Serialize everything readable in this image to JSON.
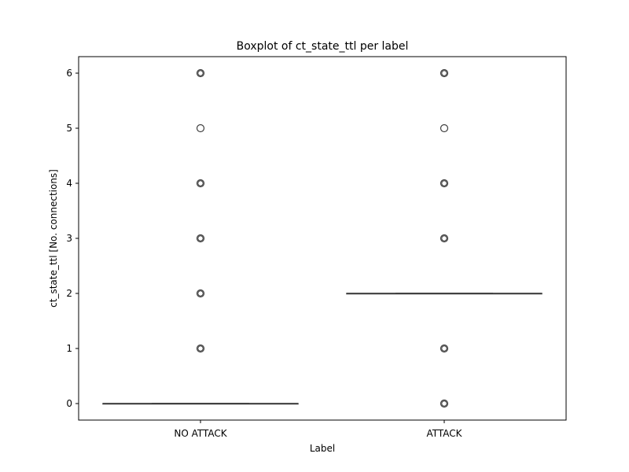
{
  "chart_data": {
    "type": "box",
    "title": "Boxplot of ct_state_ttl per label",
    "xlabel": "Label",
    "ylabel": "ct_state_ttl [No. connections]",
    "categories": [
      "NO ATTACK",
      "ATTACK"
    ],
    "ylim": [
      -0.3,
      6.3
    ],
    "yticks": [
      0,
      1,
      2,
      3,
      4,
      5,
      6
    ],
    "grid": false,
    "boxes": [
      {
        "category": "NO ATTACK",
        "q1": 0,
        "median": 0,
        "q3": 0,
        "whisker_low": 0,
        "whisker_high": 0,
        "outliers": [
          1,
          2,
          3,
          4,
          5,
          6
        ]
      },
      {
        "category": "ATTACK",
        "q1": 2,
        "median": 2,
        "q3": 2,
        "whisker_low": 2,
        "whisker_high": 2,
        "outliers": [
          0,
          1,
          3,
          4,
          5,
          6
        ]
      }
    ],
    "colors": {
      "box_line": "#3f3f3f",
      "axis": "#000000",
      "outlier_edge": "#3f3f3f"
    }
  }
}
